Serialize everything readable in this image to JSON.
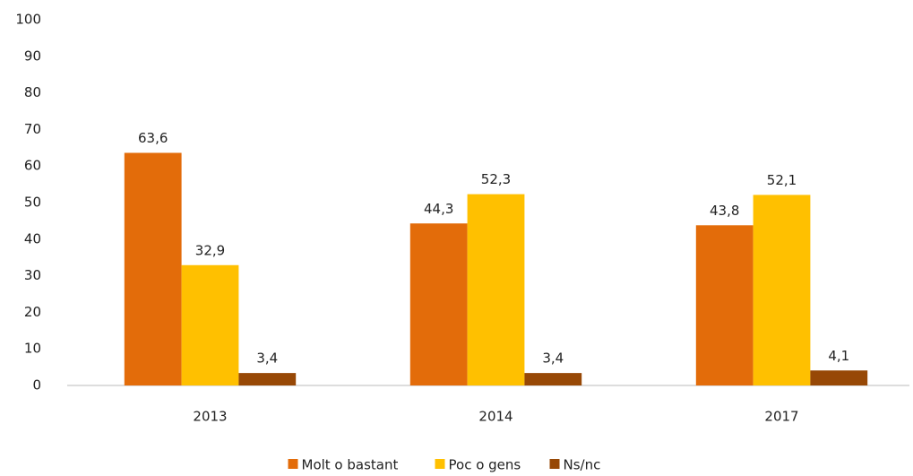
{
  "chart_data": {
    "type": "bar",
    "categories": [
      "2013",
      "2014",
      "2017"
    ],
    "series": [
      {
        "name": "Molt o bastant",
        "color": "#e36c0a",
        "values": [
          63.6,
          44.3,
          43.8
        ],
        "value_labels": [
          "63,6",
          "44,3",
          "43,8"
        ]
      },
      {
        "name": "Poc o gens",
        "color": "#ffc000",
        "values": [
          32.9,
          52.3,
          52.1
        ],
        "value_labels": [
          "32,9",
          "52,3",
          "52,1"
        ]
      },
      {
        "name": "Ns/nc",
        "color": "#974806",
        "values": [
          3.4,
          3.4,
          4.1
        ],
        "value_labels": [
          "3,4",
          "3,4",
          "4,1"
        ]
      }
    ],
    "ylim": [
      0,
      100
    ],
    "yticks": [
      0,
      10,
      20,
      30,
      40,
      50,
      60,
      70,
      80,
      90,
      100
    ],
    "grid": false,
    "legend": "bottom"
  }
}
